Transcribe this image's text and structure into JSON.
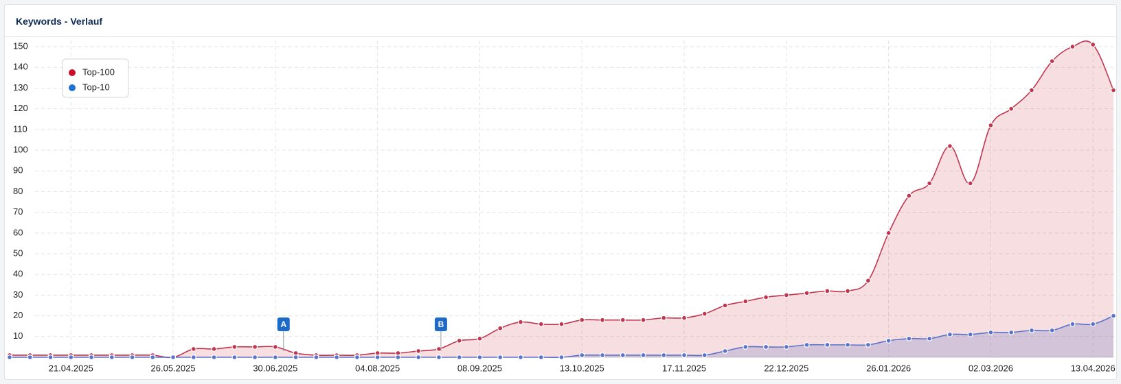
{
  "chart_data": {
    "type": "area-line",
    "title": "Keywords - Verlauf",
    "categories": [
      null,
      null,
      null,
      "21.04.2025",
      null,
      null,
      null,
      null,
      "26.05.2025",
      null,
      null,
      null,
      null,
      "30.06.2025",
      null,
      null,
      null,
      null,
      "04.08.2025",
      null,
      null,
      null,
      null,
      "08.09.2025",
      null,
      null,
      null,
      null,
      "13.10.2025",
      null,
      null,
      null,
      null,
      "17.11.2025",
      null,
      null,
      null,
      null,
      "22.12.2025",
      null,
      null,
      null,
      null,
      "26.01.2026",
      null,
      null,
      null,
      null,
      "02.03.2026",
      null,
      null,
      null,
      null,
      "13.04.2026",
      null
    ],
    "series": [
      {
        "name": "Top-100",
        "color": "#c0364e",
        "legend_color": "#c8102e",
        "fill": "rgba(200,60,80,0.17)",
        "values": [
          1,
          1,
          1,
          1,
          1,
          1,
          1,
          1,
          0,
          4,
          4,
          5,
          5,
          5,
          2,
          1,
          1,
          1,
          2,
          2,
          3,
          4,
          8,
          9,
          14,
          17,
          16,
          16,
          18,
          18,
          18,
          18,
          19,
          19,
          21,
          25,
          27,
          29,
          30,
          31,
          32,
          32,
          37,
          60,
          78,
          84,
          102,
          84,
          112,
          120,
          129,
          143,
          150,
          151,
          129
        ]
      },
      {
        "name": "Top-10",
        "color": "#5b73c9",
        "legend_color": "#1e73d2",
        "fill": "rgba(110,120,200,0.25)",
        "values": [
          0,
          0,
          0,
          0,
          0,
          0,
          0,
          0,
          0,
          0,
          0,
          0,
          0,
          0,
          0,
          0,
          0,
          0,
          0,
          0,
          0,
          0,
          0,
          0,
          0,
          0,
          0,
          0,
          1,
          1,
          1,
          1,
          1,
          1,
          1,
          3,
          5,
          5,
          5,
          6,
          6,
          6,
          6,
          8,
          9,
          9,
          11,
          11,
          12,
          12,
          13,
          13,
          16,
          16,
          20
        ]
      }
    ],
    "annotations": [
      {
        "text": "A"
      },
      {
        "text": "B"
      }
    ],
    "ylim": [
      0,
      153
    ],
    "yticks": [
      10,
      20,
      30,
      40,
      50,
      60,
      70,
      80,
      90,
      100,
      110,
      120,
      130,
      140,
      150
    ],
    "grid": true
  }
}
